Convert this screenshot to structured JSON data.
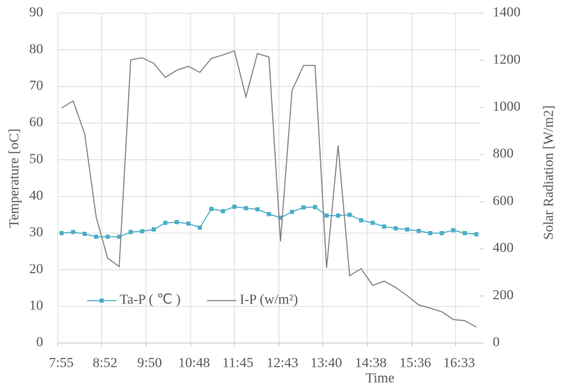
{
  "chart_data": {
    "type": "line",
    "x_label": "Time",
    "y_label": "Temperature [oC]",
    "y2_label": "Solar Radiation [W/m2]",
    "x": [
      480,
      495,
      510,
      525,
      540,
      555,
      570,
      585,
      600,
      615,
      630,
      645,
      660,
      675,
      690,
      705,
      720,
      735,
      750,
      765,
      780,
      795,
      810,
      825,
      840,
      855,
      870,
      885,
      900,
      915,
      930,
      945,
      960,
      975,
      990,
      1005,
      1020
    ],
    "series": [
      {
        "name": "Ta-P ( ℃ )",
        "color": "#4bacc6",
        "marker": "square",
        "values": [
          30.0,
          30.3,
          29.8,
          29.0,
          29.0,
          29.0,
          30.3,
          30.5,
          31.0,
          32.8,
          33.0,
          32.6,
          31.5,
          36.6,
          36.0,
          37.2,
          36.8,
          36.5,
          35.2,
          34.2,
          35.8,
          37.0,
          37.1,
          34.8,
          34.8,
          35.0,
          33.5,
          32.8,
          31.8,
          31.3,
          31.0,
          30.6,
          30.0,
          30.0,
          30.8,
          30.0,
          29.7
        ]
      },
      {
        "name": "I-P (w/m²)",
        "color": "#7f7f7f",
        "axis": "y2",
        "values": [
          998,
          1028,
          889,
          535,
          360,
          325,
          1202,
          1211,
          1187,
          1128,
          1158,
          1175,
          1149,
          1208,
          1223,
          1240,
          1045,
          1229,
          1214,
          431,
          1072,
          1178,
          1178,
          319,
          839,
          286,
          316,
          245,
          263,
          236,
          201,
          162,
          148,
          133,
          100,
          95,
          68
        ]
      }
    ],
    "xlim": [
      475,
      1025
    ],
    "xticks": [
      {
        "value": 475,
        "label": "7:55"
      },
      {
        "value": 532,
        "label": "8:52"
      },
      {
        "value": 590,
        "label": "9:50"
      },
      {
        "value": 648,
        "label": "10:48"
      },
      {
        "value": 705,
        "label": "11:45"
      },
      {
        "value": 763,
        "label": "12:43"
      },
      {
        "value": 820,
        "label": "13:40"
      },
      {
        "value": 878,
        "label": "14:38"
      },
      {
        "value": 936,
        "label": "15:36"
      },
      {
        "value": 993,
        "label": "16:33"
      }
    ],
    "ylim": [
      0,
      90
    ],
    "yticks": [
      0,
      10,
      20,
      30,
      40,
      50,
      60,
      70,
      80,
      90
    ],
    "y2lim": [
      0,
      1400
    ],
    "y2ticks": [
      0,
      200,
      400,
      600,
      800,
      1000,
      1200,
      1400
    ],
    "grid": true,
    "legend": "lower left"
  }
}
